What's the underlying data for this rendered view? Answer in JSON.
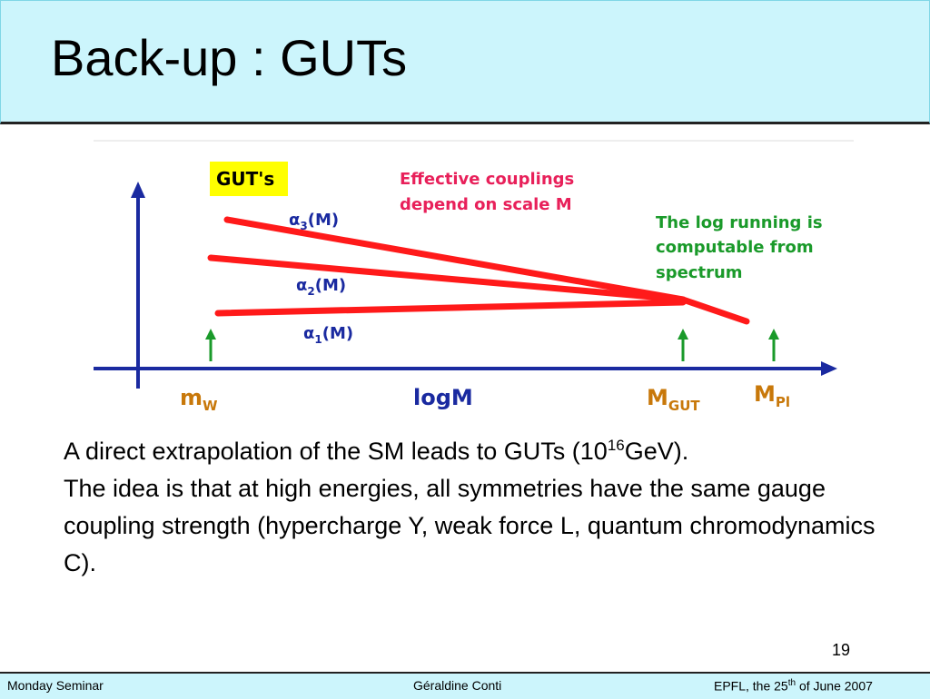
{
  "header": {
    "title": "Back-up : GUTs"
  },
  "figure": {
    "badge": "GUT's",
    "note_effective": [
      "Effective  couplings",
      "depend  on  scale  M"
    ],
    "note_running": [
      "The  log  running  is",
      "computable  from",
      "spectrum"
    ],
    "couplings": [
      {
        "symbol": "α",
        "sub": "3",
        "tail": "(M)"
      },
      {
        "symbol": "α",
        "sub": "2",
        "tail": "(M)"
      },
      {
        "symbol": "α",
        "sub": "1",
        "tail": "(M)"
      }
    ],
    "axis_labels": [
      {
        "base": "m",
        "sub": "W"
      },
      {
        "base": "logM",
        "sub": ""
      },
      {
        "base": "M",
        "sub": "GUT"
      },
      {
        "base": "M",
        "sub": "Pl"
      }
    ]
  },
  "body": {
    "line1": {
      "before": "A direct extrapolation of the SM leads to GUTs (10",
      "sup": "16",
      "after": "GeV)."
    },
    "line2": "The idea is that at high energies, all symmetries have the same gauge coupling strength (hypercharge Y, weak force L, quantum chromodynamics C)."
  },
  "page_number": "19",
  "footer": {
    "left": "Monday Seminar",
    "center": "Géraldine Conti",
    "right": {
      "before": "EPFL, the 25",
      "sup": "th",
      "after": " of June 2007"
    }
  }
}
